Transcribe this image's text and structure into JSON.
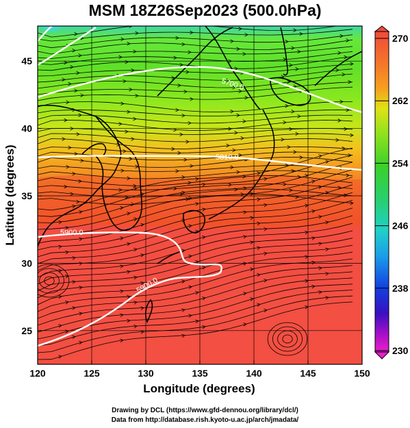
{
  "title": "MSM 18Z26Sep2023 (500.0hPa)",
  "x_axis": {
    "label": "Longitude (degrees)",
    "range": [
      120,
      150
    ],
    "ticks": [
      "120",
      "125",
      "130",
      "135",
      "140",
      "145",
      "150"
    ]
  },
  "y_axis": {
    "label": "Latitude  (degrees)",
    "range": [
      22.5,
      47.6
    ],
    "ticks": [
      "25",
      "30",
      "35",
      "40",
      "45"
    ]
  },
  "colorbar": {
    "range": [
      230,
      270
    ],
    "labels": [
      "270",
      "262",
      "254",
      "246",
      "238",
      "230"
    ]
  },
  "contours": [
    {
      "label": "5700.0"
    },
    {
      "label": "5810.0"
    },
    {
      "label": "5900.0"
    },
    {
      "label": "5900.0"
    }
  ],
  "credits": {
    "line1": "Drawing by DCL (https://www.gfd-dennou.org/library/dcl/)",
    "line2": "Data from http://database.rish.kyoto-u.ac.jp/arch/jmadata/"
  },
  "colors": {
    "contour": "#ffffff",
    "coastline": "#000000",
    "streamline": "#000000"
  }
}
